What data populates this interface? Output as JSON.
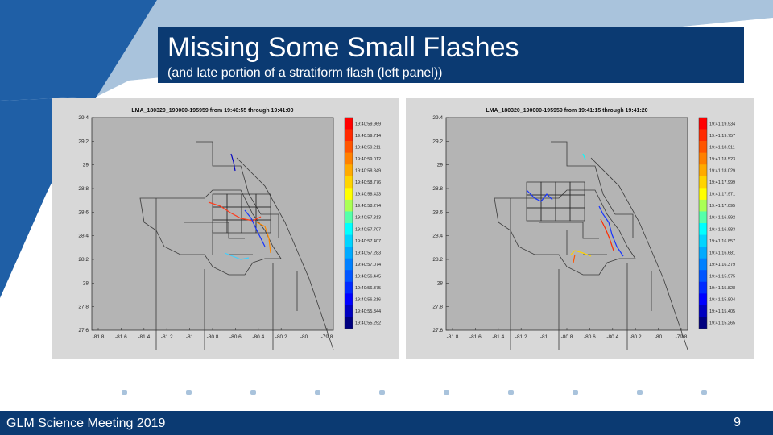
{
  "slide": {
    "title": "Missing Some Small Flashes",
    "subtitle": "(and late portion of a stratiform flash (left panel))",
    "footer_text": "GLM Science Meeting 2019",
    "page_number": "9"
  },
  "colors": {
    "brand_dark": "#0b3a72",
    "brand_mid": "#1f5fa6",
    "brand_light": "#a9c3dc"
  },
  "panels": [
    {
      "title": "LMA_180320_190000-195959 from 19:40:55 through 19:41:00",
      "colorbar_labels": [
        "19:40:59.969",
        "19:40:59.714",
        "19:40:59.211",
        "19:40:59.012",
        "19:40:58.849",
        "19:40:58.776",
        "19:40:58.423",
        "19:40:58.274",
        "19:40:57.813",
        "19:40:57.707",
        "19:40:57.407",
        "19:40:57.283",
        "19:40:57.074",
        "19:40:56.445",
        "19:40:56.375",
        "19:40:56.216",
        "19:40:55.344",
        "19:40:55.252"
      ]
    },
    {
      "title": "LMA_180320_190000-195959 from 19:41:15 through 19:41:20",
      "colorbar_labels": [
        "19:41:19.934",
        "19:41:19.757",
        "19:41:18.911",
        "19:41:18.523",
        "19:41:18.029",
        "19:41:17.999",
        "19:41:17.971",
        "19:41:17.095",
        "19:41:16.992",
        "19:41:16.983",
        "19:41:16.857",
        "19:41:16.681",
        "19:41:16.379",
        "19:41:15.975",
        "19:41:15.828",
        "19:41:15.804",
        "19:41:15.405",
        "19:41:15.265"
      ]
    }
  ],
  "axes": {
    "y_ticks": [
      "29.4",
      "29.2",
      "29",
      "28.8",
      "28.6",
      "28.4",
      "28.2",
      "28",
      "27.8",
      "27.6"
    ],
    "x_ticks": [
      "-81.8",
      "-81.6",
      "-81.4",
      "-81.2",
      "-81",
      "-80.8",
      "-80.6",
      "-80.4",
      "-80.2",
      "-80",
      "-79.8"
    ]
  },
  "colorbar_colors": [
    "#ff0000",
    "#ff2a00",
    "#ff5500",
    "#ff8000",
    "#ffaa00",
    "#ffd400",
    "#ffff00",
    "#aaff55",
    "#55ffaa",
    "#00ffff",
    "#00d4ff",
    "#00aaff",
    "#0080ff",
    "#0055ff",
    "#002aff",
    "#0000ff",
    "#0000c0",
    "#000080"
  ],
  "decor_dots": 10
}
